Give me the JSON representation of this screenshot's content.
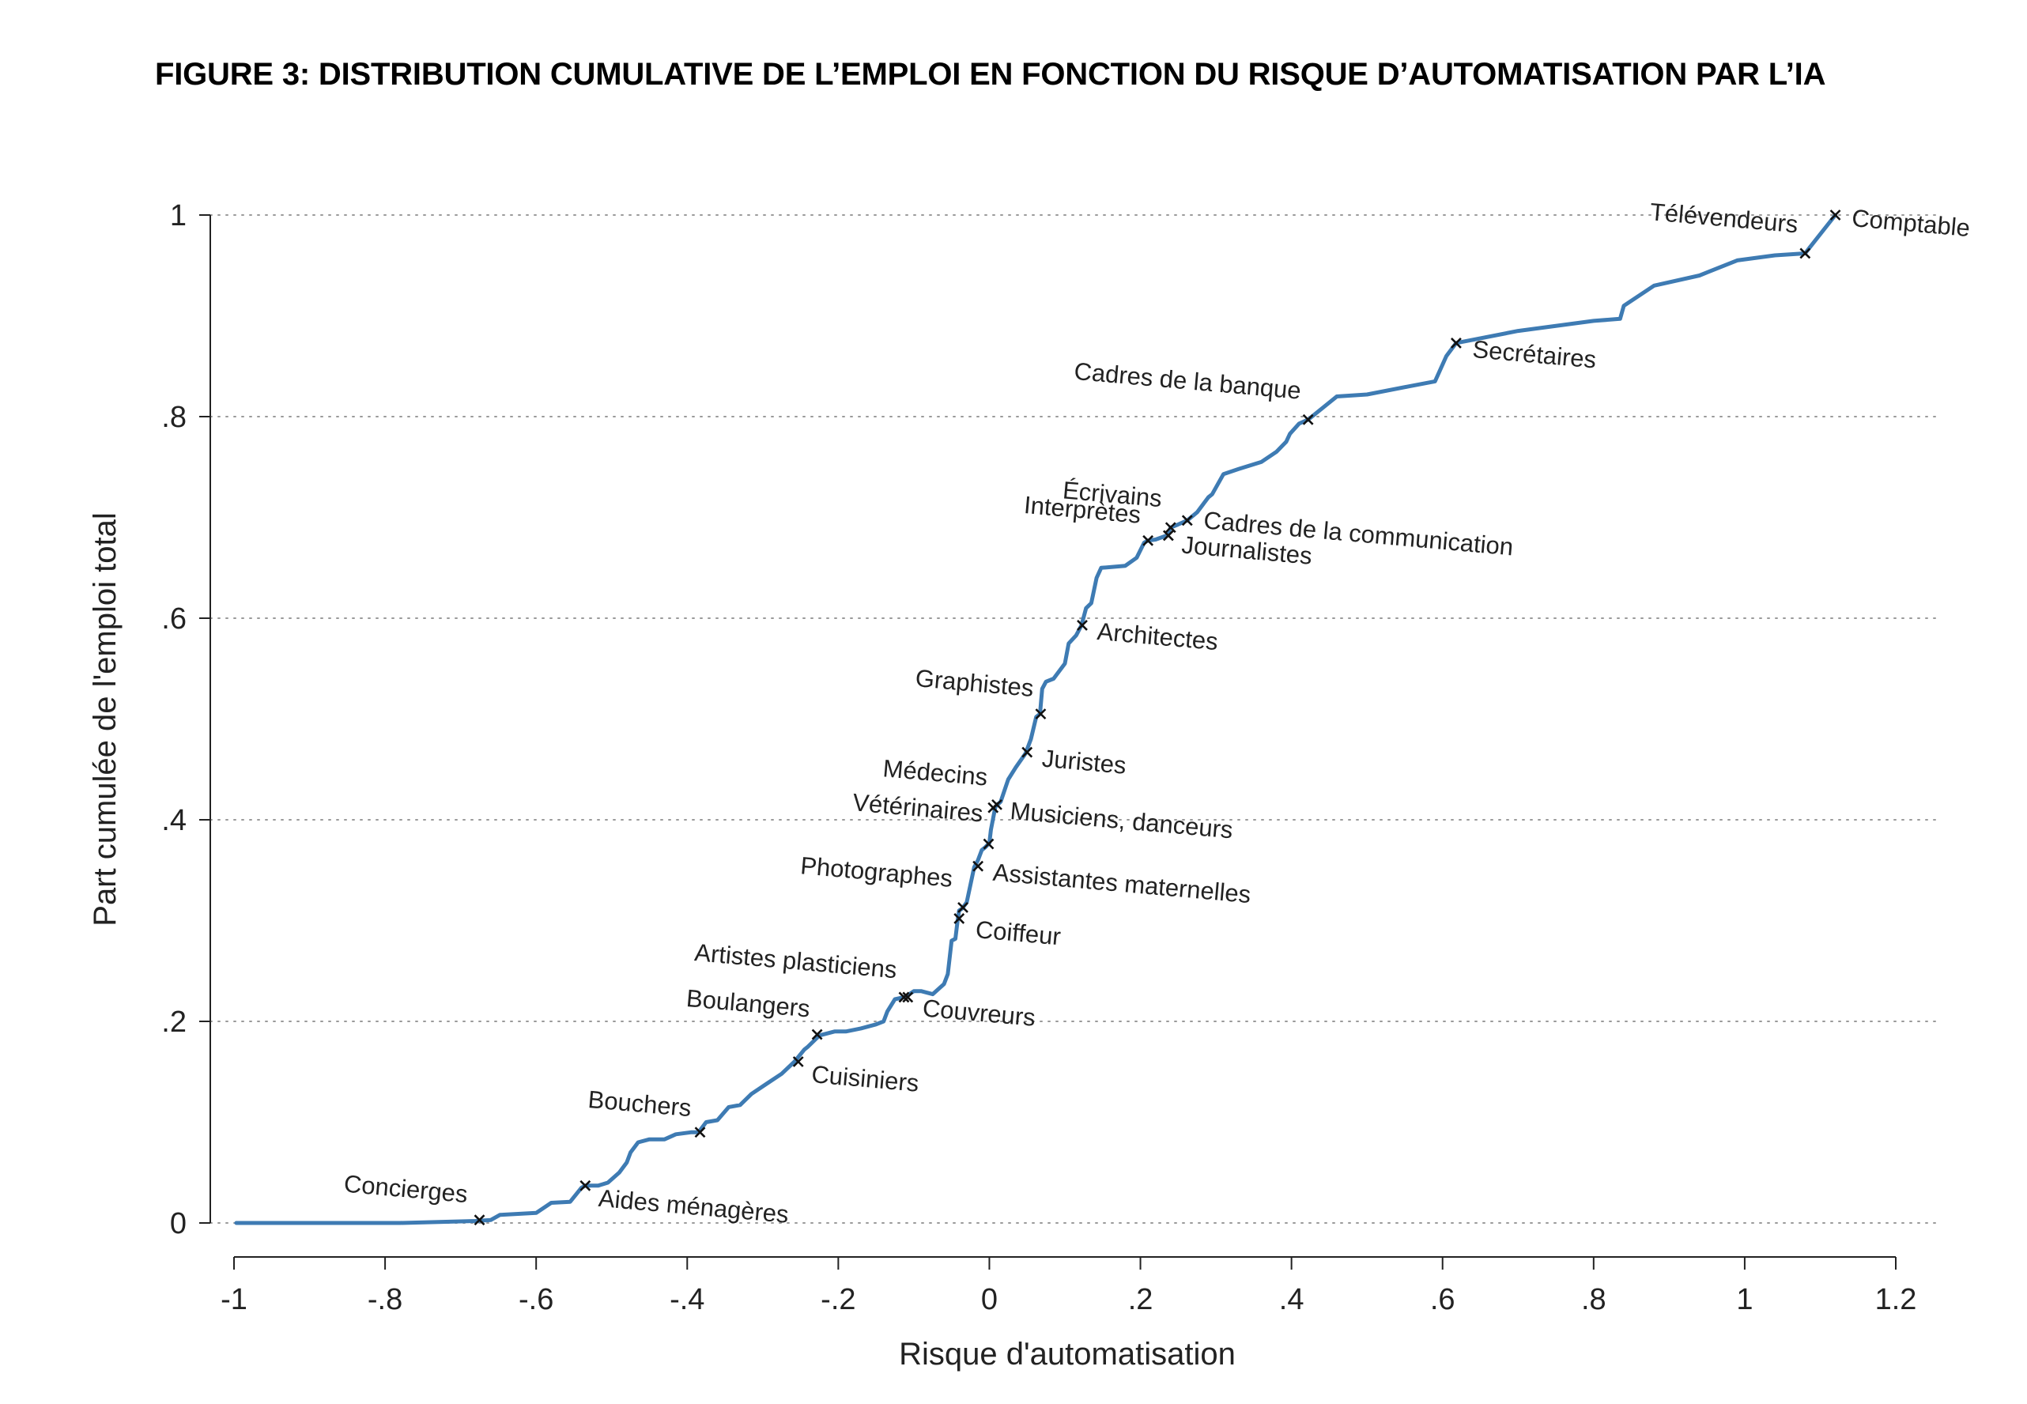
{
  "chart_data": {
    "type": "line",
    "title": "FIGURE 3: DISTRIBUTION CUMULATIVE DE L’EMPLOI EN FONCTION DU RISQUE D’AUTOMATISATION PAR L’IA",
    "xlabel": "Risque d'automatisation",
    "ylabel": "Part cumulée de l'emploi total",
    "xlim": [
      -1,
      1.2
    ],
    "ylim": [
      0,
      1
    ],
    "xticks": [
      -1,
      -0.8,
      -0.6,
      -0.4,
      -0.2,
      0,
      0.2,
      0.4,
      0.6,
      0.8,
      1,
      1.2
    ],
    "xtick_labels": [
      "-1",
      "-.8",
      "-.6",
      "-.4",
      "-.2",
      "0",
      ".2",
      ".4",
      ".6",
      ".8",
      "1",
      "1.2"
    ],
    "yticks": [
      0,
      0.2,
      0.4,
      0.6,
      0.8,
      1
    ],
    "ytick_labels": [
      "0",
      ".2",
      ".4",
      ".6",
      ".8",
      "1"
    ],
    "grid": "horizontal dotted",
    "line_color": "#3e7bb3",
    "marker_color": "#111111",
    "series": [
      {
        "x": [
          -0.997,
          -0.78,
          -0.68,
          -0.66,
          -0.648,
          -0.6,
          -0.58,
          -0.555,
          -0.54,
          -0.535,
          -0.518,
          -0.505,
          -0.49,
          -0.48,
          -0.475,
          -0.47,
          -0.465,
          -0.45,
          -0.43,
          -0.415,
          -0.395,
          -0.385,
          -0.375,
          -0.36,
          -0.345,
          -0.33,
          -0.315,
          -0.295,
          -0.275,
          -0.258,
          -0.245,
          -0.24,
          -0.225,
          -0.205,
          -0.19,
          -0.17,
          -0.15,
          -0.14,
          -0.135,
          -0.125,
          -0.113,
          -0.108,
          -0.1,
          -0.09,
          -0.075,
          -0.06,
          -0.055,
          -0.05,
          -0.045,
          -0.042,
          -0.04,
          -0.036,
          -0.03,
          -0.02,
          -0.015,
          -0.01,
          -0.005,
          0.0,
          0.002,
          0.008,
          0.015,
          0.025,
          0.035,
          0.048,
          0.055,
          0.062,
          0.067,
          0.07,
          0.075,
          0.085,
          0.1,
          0.105,
          0.115,
          0.122,
          0.128,
          0.135,
          0.142,
          0.148,
          0.18,
          0.195,
          0.205,
          0.21,
          0.22,
          0.235,
          0.24,
          0.25,
          0.262,
          0.275,
          0.29,
          0.295,
          0.31,
          0.33,
          0.36,
          0.38,
          0.393,
          0.398,
          0.41,
          0.422,
          0.46,
          0.5,
          0.555,
          0.59,
          0.605,
          0.618,
          0.7,
          0.8,
          0.835,
          0.84,
          0.88,
          0.94,
          0.99,
          1.04,
          1.08,
          1.12
        ],
        "y": [
          0.0,
          0.0,
          0.002,
          0.003,
          0.008,
          0.01,
          0.02,
          0.021,
          0.035,
          0.037,
          0.037,
          0.04,
          0.05,
          0.06,
          0.07,
          0.075,
          0.08,
          0.083,
          0.083,
          0.088,
          0.09,
          0.09,
          0.1,
          0.102,
          0.115,
          0.117,
          0.128,
          0.138,
          0.148,
          0.16,
          0.172,
          0.175,
          0.186,
          0.19,
          0.19,
          0.193,
          0.197,
          0.2,
          0.21,
          0.222,
          0.224,
          0.226,
          0.23,
          0.23,
          0.227,
          0.237,
          0.247,
          0.28,
          0.282,
          0.3,
          0.31,
          0.312,
          0.318,
          0.353,
          0.36,
          0.37,
          0.373,
          0.377,
          0.39,
          0.413,
          0.418,
          0.44,
          0.452,
          0.466,
          0.48,
          0.502,
          0.505,
          0.53,
          0.537,
          0.54,
          0.555,
          0.575,
          0.583,
          0.593,
          0.61,
          0.615,
          0.64,
          0.65,
          0.652,
          0.66,
          0.675,
          0.677,
          0.678,
          0.682,
          0.69,
          0.693,
          0.697,
          0.705,
          0.72,
          0.723,
          0.743,
          0.748,
          0.755,
          0.765,
          0.775,
          0.783,
          0.793,
          0.797,
          0.82,
          0.822,
          0.83,
          0.835,
          0.86,
          0.873,
          0.885,
          0.895,
          0.897,
          0.91,
          0.93,
          0.94,
          0.955,
          0.96,
          0.962,
          1.0
        ]
      }
    ],
    "annotations": [
      {
        "label": "Concierges",
        "x": -0.675,
        "y": 0.003,
        "side": "left",
        "dx": -16,
        "dy": -22,
        "rot": 5
      },
      {
        "label": "Aides ménagères",
        "x": -0.535,
        "y": 0.037,
        "side": "right",
        "dx": 16,
        "dy": 26,
        "rot": 5
      },
      {
        "label": "Bouchers",
        "x": -0.383,
        "y": 0.09,
        "side": "left",
        "dx": -12,
        "dy": -20,
        "rot": 5
      },
      {
        "label": "Cuisiniers",
        "x": -0.253,
        "y": 0.16,
        "side": "right",
        "dx": 16,
        "dy": 26,
        "rot": 5
      },
      {
        "label": "Boulangers",
        "x": -0.228,
        "y": 0.187,
        "side": "left",
        "dx": -10,
        "dy": -22,
        "rot": 5
      },
      {
        "label": "Artistes plasticiens",
        "x": -0.113,
        "y": 0.224,
        "side": "left",
        "dx": -10,
        "dy": -24,
        "rot": 5
      },
      {
        "label": "Couvreurs",
        "x": -0.108,
        "y": 0.224,
        "side": "right",
        "dx": 18,
        "dy": 24,
        "rot": 5
      },
      {
        "label": "Photographes",
        "x": -0.035,
        "y": 0.313,
        "side": "left",
        "dx": -14,
        "dy": -26,
        "rot": 5
      },
      {
        "label": "Coiffeur",
        "x": -0.04,
        "y": 0.302,
        "side": "right",
        "dx": 20,
        "dy": 24,
        "rot": 5
      },
      {
        "label": "Assistantes maternelles",
        "x": -0.015,
        "y": 0.354,
        "side": "right",
        "dx": 18,
        "dy": 18,
        "rot": 5
      },
      {
        "label": "Vétérinaires",
        "x": -0.001,
        "y": 0.376,
        "side": "left",
        "dx": -8,
        "dy": -28,
        "rot": 5
      },
      {
        "label": "Musiciens, danceurs",
        "x": 0.01,
        "y": 0.415,
        "side": "right",
        "dx": 16,
        "dy": 18,
        "rot": 5
      },
      {
        "label": "Médecins",
        "x": 0.005,
        "y": 0.412,
        "side": "left",
        "dx": -8,
        "dy": -28,
        "rot": 5
      },
      {
        "label": "Juristes",
        "x": 0.05,
        "y": 0.467,
        "side": "right",
        "dx": 18,
        "dy": 18,
        "rot": 5
      },
      {
        "label": "Graphistes",
        "x": 0.068,
        "y": 0.505,
        "side": "left",
        "dx": -10,
        "dy": -22,
        "rot": 5
      },
      {
        "label": "Architectes",
        "x": 0.123,
        "y": 0.593,
        "side": "right",
        "dx": 18,
        "dy": 18,
        "rot": 5
      },
      {
        "label": "Interprètes",
        "x": 0.21,
        "y": 0.677,
        "side": "left",
        "dx": -10,
        "dy": -22,
        "rot": 5
      },
      {
        "label": "Journalistes",
        "x": 0.237,
        "y": 0.682,
        "side": "right",
        "dx": 16,
        "dy": 22,
        "rot": 5
      },
      {
        "label": "Écrivains",
        "x": 0.24,
        "y": 0.69,
        "side": "left",
        "dx": -12,
        "dy": -26,
        "rot": 5
      },
      {
        "label": "Cadres de la communication",
        "x": 0.262,
        "y": 0.697,
        "side": "right",
        "dx": 20,
        "dy": 10,
        "rot": 5
      },
      {
        "label": "Cadres de la banque",
        "x": 0.422,
        "y": 0.797,
        "side": "left",
        "dx": -10,
        "dy": -26,
        "rot": 5
      },
      {
        "label": "Secrétaires",
        "x": 0.618,
        "y": 0.873,
        "side": "right",
        "dx": 20,
        "dy": 18,
        "rot": 5
      },
      {
        "label": "Télévendeurs",
        "x": 1.08,
        "y": 0.962,
        "side": "left",
        "dx": -10,
        "dy": -26,
        "rot": 5
      },
      {
        "label": "Comptable",
        "x": 1.12,
        "y": 1.0,
        "side": "right",
        "dx": 20,
        "dy": 14,
        "rot": 5
      }
    ]
  }
}
